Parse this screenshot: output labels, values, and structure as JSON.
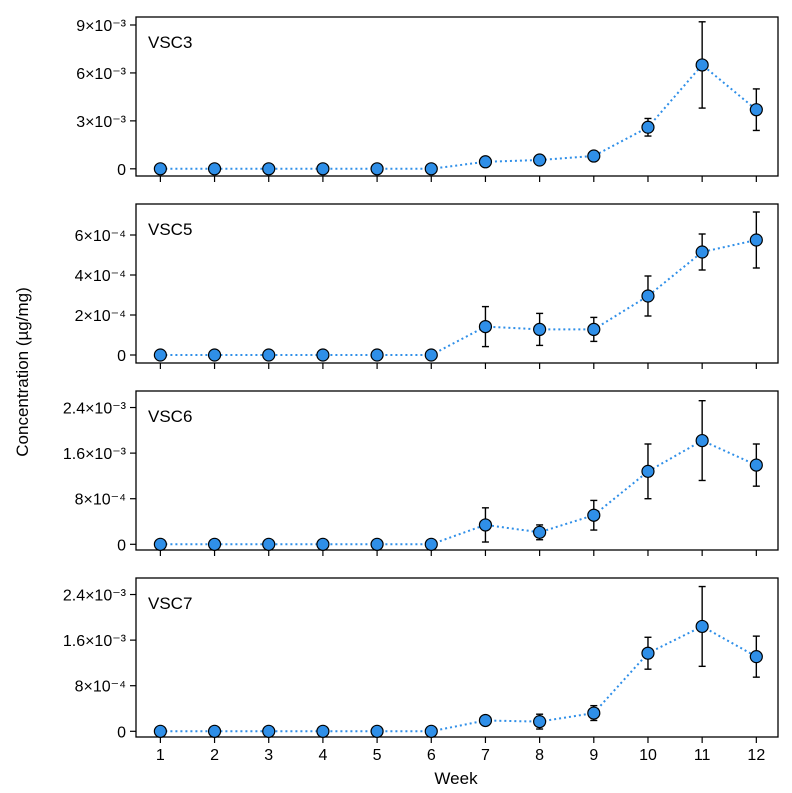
{
  "figure": {
    "ylabel": "Concentration (µg/mg)",
    "xlabel": "Week",
    "x_ticks": [
      "1",
      "2",
      "3",
      "4",
      "5",
      "6",
      "7",
      "8",
      "9",
      "10",
      "11",
      "12"
    ],
    "marker_color": "#2f8fe8",
    "line_color": "#2f8fe8",
    "marker_edge_color": "#000000",
    "errorbar_color": "#000000"
  },
  "chart_data": [
    {
      "type": "line",
      "panel_label": "VSC3",
      "x": [
        1,
        2,
        3,
        4,
        5,
        6,
        7,
        8,
        9,
        10,
        11,
        12
      ],
      "series": [
        {
          "values": [
            0,
            0,
            0,
            0,
            0,
            0,
            0.00044,
            0.00055,
            0.0008,
            0.0026,
            0.0065,
            0.0037
          ],
          "error": [
            0,
            0,
            0,
            0,
            0,
            0,
            0,
            0,
            0,
            0.00055,
            0.0027,
            0.0013
          ]
        }
      ],
      "ylim": [
        -0.00045,
        0.0095
      ],
      "y_ticks": [
        0,
        0.003,
        0.006,
        0.009
      ],
      "y_tick_labels": [
        "0",
        "3×10⁻³",
        "6×10⁻³",
        "9×10⁻³"
      ],
      "xlim": [
        0.55,
        12.4
      ]
    },
    {
      "type": "line",
      "panel_label": "VSC5",
      "x": [
        1,
        2,
        3,
        4,
        5,
        6,
        7,
        8,
        9,
        10,
        11,
        12
      ],
      "series": [
        {
          "values": [
            0,
            0,
            0,
            0,
            0,
            0,
            0.000142,
            0.000128,
            0.000128,
            0.000295,
            0.000515,
            0.000575
          ],
          "error": [
            0,
            0,
            0,
            0,
            0,
            0,
            0.0001,
            8e-05,
            6e-05,
            0.0001,
            9e-05,
            0.00014
          ]
        }
      ],
      "ylim": [
        -4e-05,
        0.000755
      ],
      "y_ticks": [
        0,
        0.0002,
        0.0004,
        0.0006
      ],
      "y_tick_labels": [
        "0",
        "2×10⁻⁴",
        "4×10⁻⁴",
        "6×10⁻⁴"
      ],
      "xlim": [
        0.55,
        12.4
      ]
    },
    {
      "type": "line",
      "panel_label": "VSC6",
      "x": [
        1,
        2,
        3,
        4,
        5,
        6,
        7,
        8,
        9,
        10,
        11,
        12
      ],
      "series": [
        {
          "values": [
            0,
            0,
            0,
            0,
            0,
            0,
            0.00034,
            0.00021,
            0.00051,
            0.00128,
            0.00182,
            0.00139
          ],
          "error": [
            0,
            0,
            0,
            0,
            0,
            0,
            0.0003,
            0.00013,
            0.00026,
            0.00048,
            0.0007,
            0.00037
          ]
        }
      ],
      "ylim": [
        -0.0001,
        0.00269
      ],
      "y_ticks": [
        0,
        0.0008,
        0.0016,
        0.0024
      ],
      "y_tick_labels": [
        "0",
        "8×10⁻⁴",
        "1.6×10⁻³",
        "2.4×10⁻³"
      ],
      "xlim": [
        0.55,
        12.4
      ]
    },
    {
      "type": "line",
      "panel_label": "VSC7",
      "x": [
        1,
        2,
        3,
        4,
        5,
        6,
        7,
        8,
        9,
        10,
        11,
        12
      ],
      "series": [
        {
          "values": [
            0,
            0,
            0,
            0,
            0,
            0,
            0.00019,
            0.00017,
            0.00032,
            0.00137,
            0.00184,
            0.00131
          ],
          "error": [
            0,
            0,
            0,
            0,
            0,
            0,
            0,
            0.00013,
            0.00013,
            0.00028,
            0.0007,
            0.00036
          ]
        }
      ],
      "ylim": [
        -0.0001,
        0.00269
      ],
      "y_ticks": [
        0,
        0.0008,
        0.0016,
        0.0024
      ],
      "y_tick_labels": [
        "0",
        "8×10⁻⁴",
        "1.6×10⁻³",
        "2.4×10⁻³"
      ],
      "xlim": [
        0.55,
        12.4
      ]
    }
  ]
}
